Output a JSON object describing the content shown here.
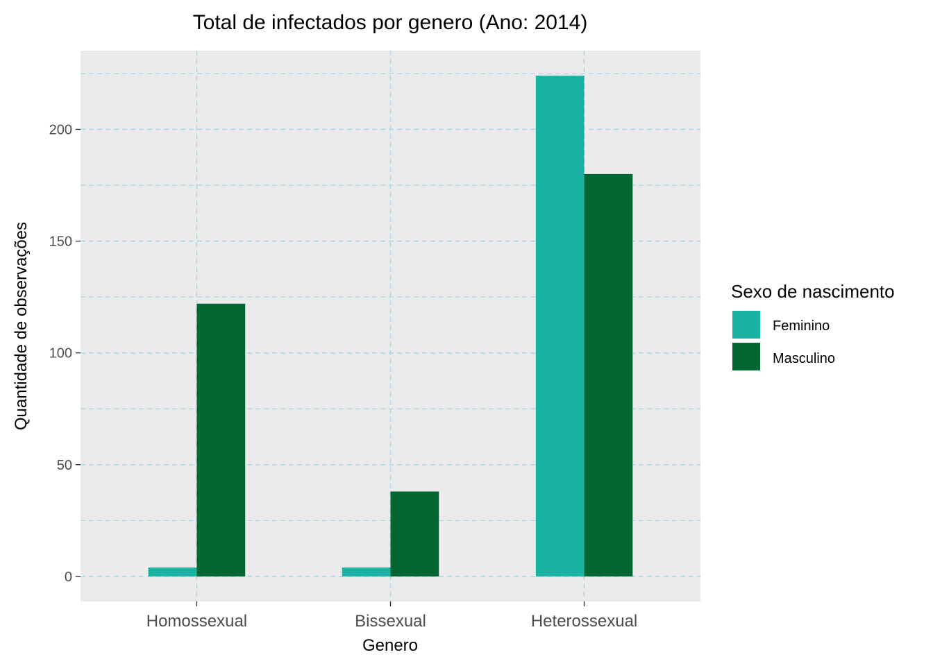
{
  "chart_data": {
    "type": "bar",
    "title": "Total de infectados por genero (Ano: 2014)",
    "xlabel": "Genero",
    "ylabel": "Quantidade de observações",
    "categories": [
      "Homossexual",
      "Bissexual",
      "Heterossexual"
    ],
    "series": [
      {
        "name": "Feminino",
        "color": "#1ab2a3",
        "values": [
          4,
          4,
          224
        ]
      },
      {
        "name": "Masculino",
        "color": "#036633",
        "values": [
          122,
          38,
          180
        ]
      }
    ],
    "ylim": [
      -11.2,
      235.2
    ],
    "yticks": [
      0,
      50,
      100,
      150,
      200
    ],
    "yticks_minor": [
      25,
      75,
      125,
      175,
      225
    ],
    "grid": true,
    "panel_background": "#ebebeb",
    "grid_color": "#add8e6",
    "legend": {
      "title": "Sexo de nascimento",
      "placement": "right",
      "entries": [
        "Feminino",
        "Masculino"
      ]
    }
  }
}
